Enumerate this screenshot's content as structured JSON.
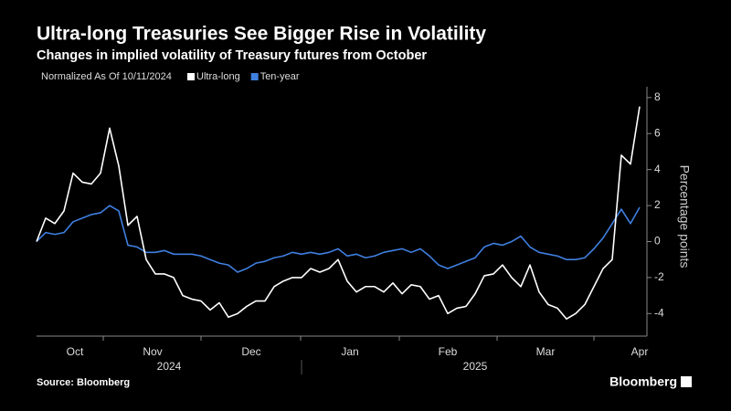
{
  "chart_data": {
    "type": "line",
    "title": "Ultra-long Treasuries See Bigger Rise in Volatility",
    "subtitle": "Changes in implied volatility of Treasury futures from October",
    "legend_note": "Normalized As Of 10/11/2024",
    "y_label": "Percentage points",
    "source": "Source: Bloomberg",
    "brand": "Bloomberg",
    "months": [
      "Oct",
      "Nov",
      "Dec",
      "Jan",
      "Feb",
      "Mar",
      "Apr"
    ],
    "years": [
      "2024",
      "2025"
    ],
    "ylim": [
      -5.1,
      8.6
    ],
    "yticks": [
      -4,
      -2,
      0,
      2,
      4,
      6,
      8
    ],
    "series": [
      {
        "name": "Ultra-long",
        "color": "#ffffff",
        "values": [
          0,
          1.3,
          1.0,
          1.7,
          3.8,
          3.3,
          3.2,
          3.8,
          6.3,
          4.2,
          0.9,
          1.4,
          -1.0,
          -1.8,
          -1.8,
          -2.0,
          -3.0,
          -3.2,
          -3.3,
          -3.8,
          -3.4,
          -4.2,
          -4.0,
          -3.6,
          -3.3,
          -3.3,
          -2.5,
          -2.2,
          -2.0,
          -2.0,
          -1.5,
          -1.7,
          -1.5,
          -1.0,
          -2.2,
          -2.8,
          -2.5,
          -2.5,
          -2.8,
          -2.3,
          -2.9,
          -2.4,
          -2.5,
          -3.2,
          -3.0,
          -4.0,
          -3.7,
          -3.6,
          -2.9,
          -1.9,
          -1.8,
          -1.3,
          -2.0,
          -2.5,
          -1.3,
          -2.8,
          -3.5,
          -3.7,
          -4.3,
          -4.0,
          -3.5,
          -2.5,
          -1.5,
          -1.0,
          4.8,
          4.3,
          7.5
        ]
      },
      {
        "name": "Ten-year",
        "color": "#3f7fe0",
        "values": [
          0,
          0.5,
          0.4,
          0.5,
          1.1,
          1.3,
          1.5,
          1.6,
          2.0,
          1.7,
          -0.2,
          -0.3,
          -0.6,
          -0.6,
          -0.5,
          -0.7,
          -0.7,
          -0.7,
          -0.8,
          -1.0,
          -1.2,
          -1.3,
          -1.7,
          -1.5,
          -1.2,
          -1.1,
          -0.9,
          -0.8,
          -0.6,
          -0.7,
          -0.6,
          -0.7,
          -0.6,
          -0.4,
          -0.8,
          -0.7,
          -0.9,
          -0.8,
          -0.6,
          -0.5,
          -0.4,
          -0.6,
          -0.4,
          -0.8,
          -1.3,
          -1.5,
          -1.3,
          -1.1,
          -0.9,
          -0.3,
          -0.1,
          -0.2,
          0.0,
          0.3,
          -0.3,
          -0.6,
          -0.7,
          -0.8,
          -1.0,
          -1.0,
          -0.9,
          -0.4,
          0.2,
          1.0,
          1.8,
          1.0,
          1.9
        ]
      }
    ]
  }
}
